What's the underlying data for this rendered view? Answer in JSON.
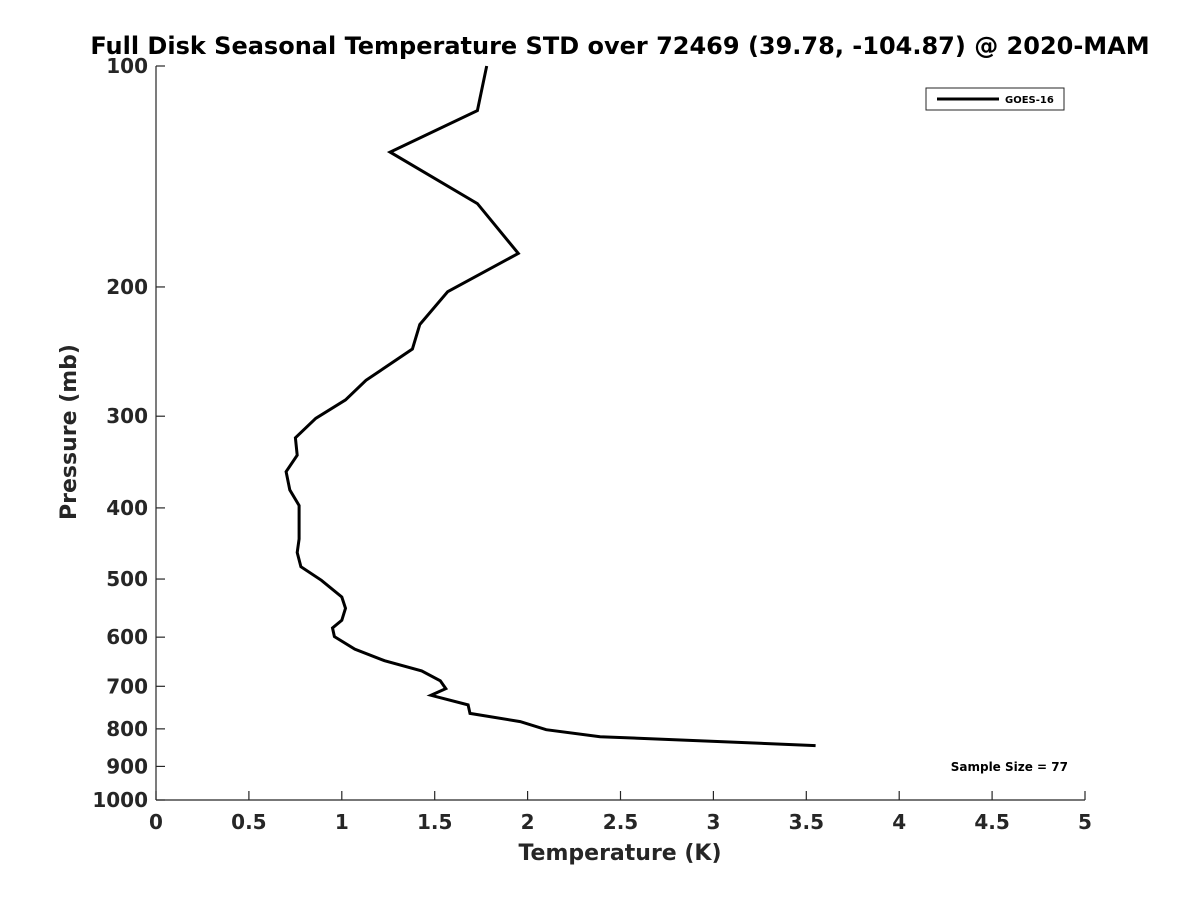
{
  "chart_data": {
    "type": "line",
    "title": "Full Disk Seasonal Temperature STD over 72469 (39.78, -104.87) @ 2020-MAM",
    "xlabel": "Temperature (K)",
    "ylabel": "Pressure (mb)",
    "xlim": [
      0,
      5
    ],
    "ylim": [
      100,
      1000
    ],
    "y_scale": "log",
    "y_reversed": true,
    "x_ticks": [
      "0",
      "0.5",
      "1",
      "1.5",
      "2",
      "2.5",
      "3",
      "3.5",
      "4",
      "4.5",
      "5"
    ],
    "x_tick_values": [
      0,
      0.5,
      1,
      1.5,
      2,
      2.5,
      3,
      3.5,
      4,
      4.5,
      5
    ],
    "y_ticks": [
      "100",
      "200",
      "300",
      "400",
      "500",
      "600",
      "700",
      "800",
      "900",
      "1000"
    ],
    "y_tick_values": [
      100,
      200,
      300,
      400,
      500,
      600,
      700,
      800,
      900,
      1000
    ],
    "grid": false,
    "legend_position": "top-right",
    "series": [
      {
        "name": "GOES-16",
        "color": "#000000",
        "x": [
          1.78,
          1.73,
          1.26,
          1.73,
          1.95,
          1.57,
          1.42,
          1.38,
          1.13,
          1.02,
          0.86,
          0.75,
          0.76,
          0.7,
          0.72,
          0.77,
          0.77,
          0.77,
          0.76,
          0.78,
          0.89,
          1.0,
          1.02,
          1.0,
          0.95,
          0.96,
          1.07,
          1.23,
          1.43,
          1.53,
          1.56,
          1.48,
          1.68,
          1.69,
          1.96,
          2.1,
          2.39,
          3.55
        ],
        "y": [
          100,
          115,
          131,
          154,
          180,
          203,
          225,
          243,
          268,
          285,
          302,
          321,
          339,
          357,
          378,
          397,
          420,
          441,
          460,
          481,
          502,
          529,
          548,
          569,
          583,
          599,
          623,
          646,
          667,
          688,
          705,
          720,
          742,
          762,
          782,
          802,
          820,
          843
        ]
      }
    ],
    "annotations": [
      "Sample Size = 77"
    ]
  }
}
